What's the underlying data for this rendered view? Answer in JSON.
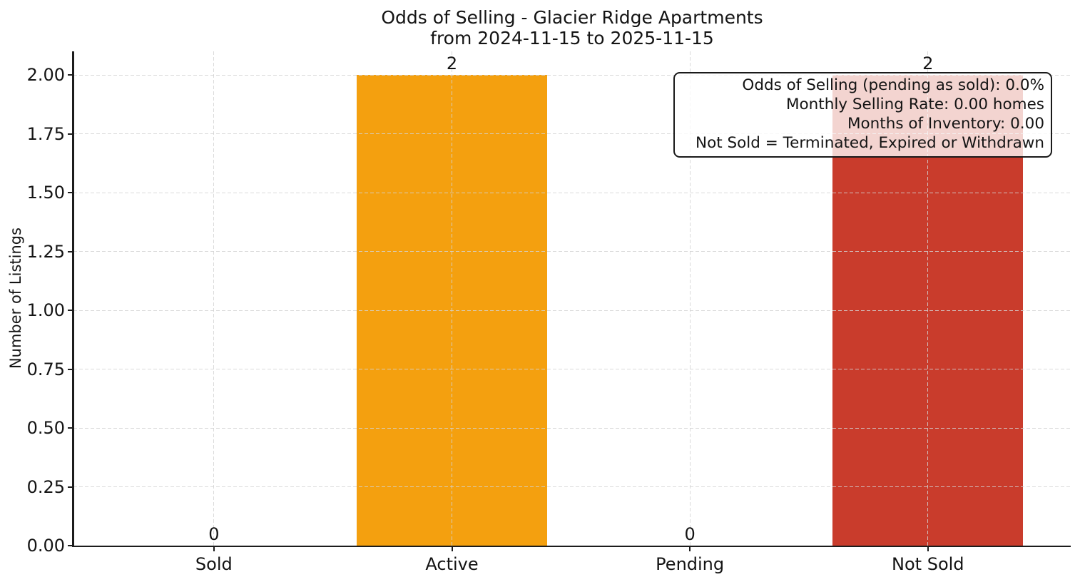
{
  "chart_data": {
    "type": "bar",
    "title_lines": [
      "Odds of Selling - Glacier Ridge Apartments",
      "from 2024-11-15 to 2025-11-15"
    ],
    "ylabel": "Number of Listings",
    "xlabel": "",
    "categories": [
      "Sold",
      "Active",
      "Pending",
      "Not Sold"
    ],
    "values": [
      0,
      2,
      0,
      2
    ],
    "bar_value_labels": [
      "0",
      "2",
      "0",
      "2"
    ],
    "bar_colors": [
      null,
      "#f4a00f",
      null,
      "#c93c2c"
    ],
    "ylim": [
      0,
      2.1
    ],
    "yticks": [
      {
        "value": 0.0,
        "label": "0.00"
      },
      {
        "value": 0.25,
        "label": "0.25"
      },
      {
        "value": 0.5,
        "label": "0.50"
      },
      {
        "value": 0.75,
        "label": "0.75"
      },
      {
        "value": 1.0,
        "label": "1.00"
      },
      {
        "value": 1.25,
        "label": "1.25"
      },
      {
        "value": 1.5,
        "label": "1.50"
      },
      {
        "value": 1.75,
        "label": "1.75"
      },
      {
        "value": 2.0,
        "label": "2.00"
      }
    ],
    "grid": {
      "style": "dashed",
      "horizontal": true,
      "vertical": true,
      "color": "#d3d3d3"
    },
    "axis_color": "#1c1c1c",
    "legend": null,
    "annotation": {
      "lines": [
        "Odds of Selling (pending as sold): 0.0%",
        "Monthly Selling Rate: 0.00 homes",
        "Months of Inventory: 0.00",
        "Not Sold = Terminated, Expired or Withdrawn"
      ]
    }
  }
}
